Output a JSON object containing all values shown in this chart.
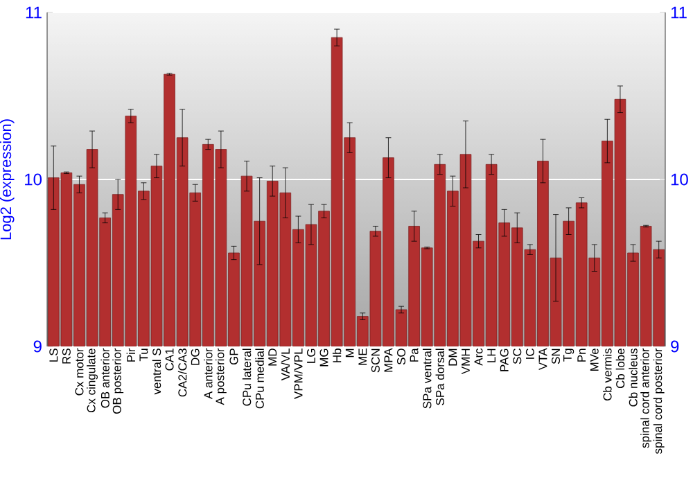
{
  "chart_data": {
    "type": "bar",
    "ylabel": "Log2 (expression)",
    "categories": [
      "LS",
      "RS",
      "Cx motor",
      "Cx cingulate",
      "OB anterior",
      "OB posterior",
      "Pir",
      "Tu",
      "ventral S",
      "CA1",
      "CA2/CA3",
      "DG",
      "A anterior",
      "A posterior",
      "GP",
      "CPu lateral",
      "CPu medial",
      "MD",
      "VA/VL",
      "VPM/VPL",
      "LG",
      "MG",
      "Hb",
      "M",
      "ME",
      "SCN",
      "MPA",
      "SO",
      "Pa",
      "SPa ventral",
      "SPa dorsal",
      "DM",
      "VMH",
      "Arc",
      "LH",
      "PAG",
      "SC",
      "IC",
      "VTA",
      "SN",
      "Tg",
      "Pn",
      "MVe",
      "Cb vermis",
      "Cb lobe",
      "Cb nucleus",
      "spinal cord anterior",
      "spinal cord posterior"
    ],
    "values": [
      10.01,
      10.04,
      9.97,
      10.18,
      9.77,
      9.91,
      10.38,
      9.93,
      10.08,
      10.63,
      10.25,
      9.92,
      10.21,
      10.18,
      9.56,
      10.02,
      9.75,
      9.99,
      9.92,
      9.7,
      9.73,
      9.81,
      10.85,
      10.25,
      9.18,
      9.69,
      10.13,
      9.22,
      9.72,
      9.59,
      10.09,
      9.93,
      10.15,
      9.63,
      10.09,
      9.74,
      9.71,
      9.58,
      10.11,
      9.53,
      9.75,
      9.86,
      9.53,
      10.23,
      10.48,
      9.56,
      9.72,
      9.58
    ],
    "errors": [
      0.19,
      0.005,
      0.05,
      0.11,
      0.03,
      0.09,
      0.04,
      0.05,
      0.07,
      0.005,
      0.17,
      0.05,
      0.03,
      0.11,
      0.04,
      0.09,
      0.26,
      0.09,
      0.15,
      0.08,
      0.12,
      0.04,
      0.05,
      0.09,
      0.02,
      0.03,
      0.12,
      0.02,
      0.09,
      0.005,
      0.06,
      0.09,
      0.2,
      0.04,
      0.06,
      0.08,
      0.09,
      0.03,
      0.13,
      0.26,
      0.08,
      0.03,
      0.08,
      0.13,
      0.08,
      0.05,
      0.005,
      0.05
    ],
    "color": "#b22f2f",
    "ylim": [
      9,
      11
    ],
    "yticks": [
      9,
      10,
      11
    ],
    "y2lim": [
      9,
      11
    ],
    "y2ticks": [
      9,
      10,
      11
    ],
    "grid": "y"
  }
}
